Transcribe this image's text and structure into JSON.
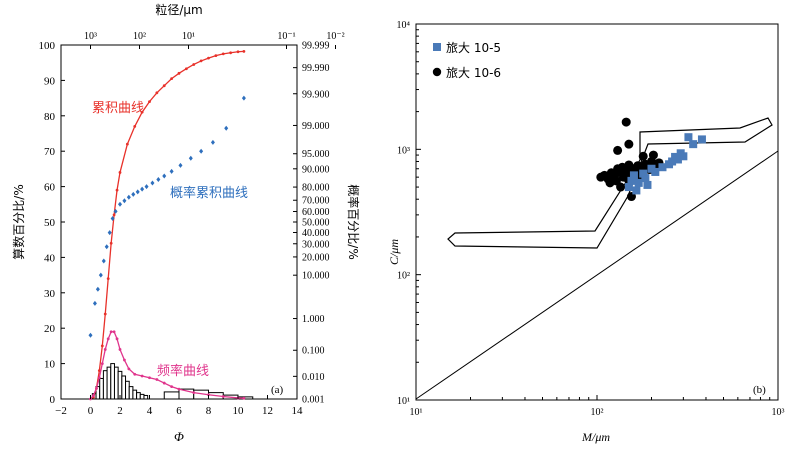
{
  "chart_data": [
    {
      "type": "line",
      "panel_label": "(a)",
      "xlabel": "Φ",
      "xlim": [
        -2,
        14
      ],
      "x_ticks": [
        "−2",
        "0",
        "2",
        "4",
        "6",
        "8",
        "10",
        "12",
        "14"
      ],
      "ylabel_left": "算数百分比/%",
      "ylim_left": [
        0,
        100
      ],
      "y_ticks_left": [
        "0",
        "10",
        "20",
        "30",
        "40",
        "50",
        "60",
        "70",
        "80",
        "90",
        "100"
      ],
      "ylabel_right": "概率百分比/%",
      "y_ticks_right": [
        "99.999",
        "99.990",
        "99.900",
        "99.000",
        "95.000",
        "90.000",
        "80.000",
        "70.000",
        "60.000",
        "50.000",
        "40.000",
        "30.000",
        "20.000",
        "10.000",
        "1.000",
        "0.100",
        "0.010",
        "0.001"
      ],
      "xlabel_top": "粒径/μm",
      "x_ticks_top": [
        "10³",
        "10²",
        "10¹",
        "10⁻¹",
        "10⁻²"
      ],
      "annotations": {
        "cumulative": "累积曲线",
        "probability": "概率累积曲线",
        "frequency": "频率曲线"
      },
      "colors": {
        "cumulative": "#e8312a",
        "probability": "#2e6fbd",
        "frequency": "#e0358c",
        "histogram": "#000000"
      },
      "series": [
        {
          "name": "累积曲线",
          "x": [
            0.2,
            0.4,
            0.6,
            0.8,
            1.0,
            1.2,
            1.4,
            1.6,
            1.8,
            2.0,
            2.5,
            3.0,
            3.5,
            4.0,
            4.5,
            5.0,
            5.5,
            6.0,
            6.5,
            7.0,
            7.5,
            8.0,
            8.5,
            9.0,
            9.5,
            10.0,
            10.4
          ],
          "values": [
            0.5,
            3,
            8,
            15,
            24,
            34,
            44,
            52,
            59,
            64,
            72,
            77,
            81,
            84,
            86.5,
            88.5,
            90.5,
            92,
            93.3,
            94.5,
            95.5,
            96.3,
            97,
            97.5,
            97.8,
            98.1,
            98.2
          ]
        },
        {
          "name": "概率累积曲线",
          "x": [
            0.0,
            0.3,
            0.5,
            0.7,
            0.9,
            1.1,
            1.3,
            1.5,
            1.7,
            2.0,
            2.3,
            2.6,
            2.9,
            3.2,
            3.5,
            3.8,
            4.2,
            4.6,
            5.0,
            5.5,
            6.1,
            6.8,
            7.5,
            8.3,
            9.2,
            10.4
          ],
          "values": [
            18,
            27,
            31,
            35,
            39,
            43,
            47,
            51,
            53,
            55,
            56,
            57,
            57.8,
            58.5,
            59.3,
            60,
            61,
            62,
            63,
            64.3,
            66,
            68,
            70,
            72.5,
            76.5,
            85
          ]
        },
        {
          "name": "频率曲线",
          "x": [
            0.0,
            0.2,
            0.4,
            0.6,
            0.8,
            1.0,
            1.2,
            1.4,
            1.6,
            1.8,
            2.0,
            2.3,
            2.6,
            3.0,
            3.5,
            4.0,
            4.5,
            5.0,
            5.5,
            6.0,
            7.0,
            8.0,
            9.0,
            10.0,
            10.4
          ],
          "values": [
            0,
            1,
            3,
            6,
            10,
            14,
            17,
            19,
            19,
            17,
            14,
            11,
            8.5,
            7,
            6.5,
            6,
            5.5,
            4.5,
            3.5,
            2.8,
            1.8,
            1.2,
            0.7,
            0.3,
            0.2
          ]
        }
      ],
      "histogram": {
        "x": [
          0.25,
          0.5,
          0.75,
          1.0,
          1.25,
          1.5,
          1.75,
          2.0,
          2.25,
          2.5,
          2.75,
          3.0,
          3.25,
          3.5,
          3.75,
          5.5,
          6.5,
          7.5,
          8.5,
          9.5,
          10.5
        ],
        "values": [
          1.5,
          3.5,
          5.8,
          8,
          9,
          10,
          9,
          7.8,
          6.5,
          5,
          3.5,
          2.5,
          1.8,
          1.3,
          1.0,
          2.0,
          2.8,
          2.5,
          1.8,
          1.1,
          0.6
        ]
      }
    },
    {
      "type": "scatter",
      "panel_label": "(b)",
      "xlabel": "M/μm",
      "ylabel": "C/μm",
      "log_x": true,
      "log_y": true,
      "xlim": [
        10,
        1000
      ],
      "ylim": [
        10,
        10000
      ],
      "x_ticks": [
        "10¹",
        "10²",
        "10³"
      ],
      "y_ticks": [
        "10¹",
        "10²",
        "10³",
        "10⁴"
      ],
      "series": [
        {
          "name": "旅大 10-5",
          "marker": "square",
          "color": "#4a7ab8",
          "x": [
            150,
            155,
            160,
            165,
            170,
            180,
            185,
            190,
            200,
            210,
            230,
            250,
            260,
            270,
            280,
            290,
            300,
            320,
            340,
            380
          ],
          "y": [
            500,
            560,
            620,
            470,
            540,
            640,
            590,
            520,
            700,
            660,
            720,
            760,
            800,
            870,
            830,
            930,
            880,
            1250,
            1100,
            1200
          ]
        },
        {
          "name": "旅大 10-6",
          "marker": "circle",
          "color": "#000000",
          "x": [
            105,
            110,
            115,
            118,
            120,
            125,
            128,
            130,
            132,
            135,
            138,
            140,
            142,
            145,
            148,
            150,
            152,
            155,
            158,
            160,
            162,
            165,
            168,
            170,
            172,
            175,
            178,
            180,
            185,
            190,
            195,
            200,
            205,
            210,
            220,
            150,
            145,
            130,
            155
          ],
          "y": [
            600,
            620,
            580,
            540,
            650,
            610,
            560,
            700,
            660,
            500,
            720,
            600,
            630,
            690,
            580,
            750,
            620,
            660,
            700,
            580,
            620,
            680,
            740,
            640,
            700,
            600,
            650,
            880,
            760,
            720,
            690,
            800,
            900,
            720,
            780,
            1100,
            1650,
            980,
            420
          ]
        }
      ],
      "envelope_region": "C-M envelope outline",
      "reference_line": "C = M"
    }
  ],
  "labels": {
    "panel_a": "(a)",
    "panel_b": "(b)",
    "legend_b_1": "旅大 10-5",
    "legend_b_2": "旅大 10-6"
  }
}
